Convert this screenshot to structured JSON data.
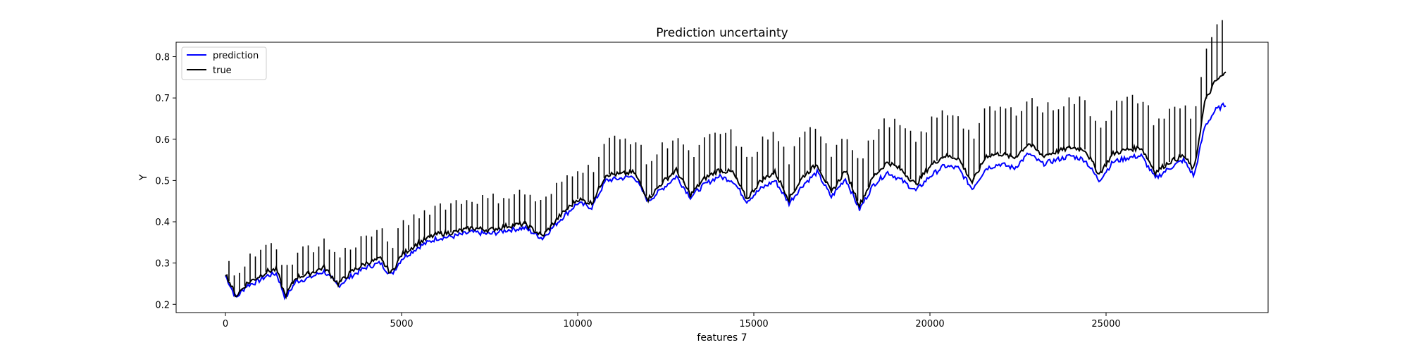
{
  "chart_data": {
    "type": "line",
    "title": "Prediction uncertainty",
    "xlabel": "features 7",
    "ylabel": "Y",
    "xlim": [
      -1400,
      29600
    ],
    "ylim": [
      0.18,
      0.835
    ],
    "x_ticks": [
      0,
      5000,
      10000,
      15000,
      20000,
      25000
    ],
    "y_ticks": [
      0.2,
      0.3,
      0.4,
      0.5,
      0.6,
      0.7,
      0.8
    ],
    "x_tick_labels": [
      "0",
      "5000",
      "10000",
      "15000",
      "20000",
      "25000"
    ],
    "y_tick_labels": [
      "0.2",
      "0.3",
      "0.4",
      "0.5",
      "0.6",
      "0.7",
      "0.8"
    ],
    "grid": false,
    "legend_position": "upper-left",
    "colors": {
      "prediction": "#0000ff",
      "true": "#000000"
    },
    "series": [
      {
        "name": "prediction",
        "x": [
          0,
          300,
          600,
          900,
          1200,
          1450,
          1700,
          2000,
          2400,
          2800,
          3200,
          3600,
          4000,
          4400,
          4700,
          5000,
          5500,
          6000,
          6500,
          7000,
          7500,
          8000,
          8500,
          9000,
          9500,
          10000,
          10400,
          10800,
          11200,
          11600,
          12000,
          12400,
          12800,
          13200,
          13600,
          14000,
          14400,
          14800,
          15200,
          15600,
          16000,
          16400,
          16800,
          17200,
          17600,
          18000,
          18400,
          18800,
          19200,
          19600,
          20000,
          20400,
          20800,
          21200,
          21600,
          22000,
          22400,
          22800,
          23200,
          23600,
          24000,
          24400,
          24800,
          25200,
          25600,
          26000,
          26400,
          26800,
          27200,
          27500,
          27800,
          28100,
          28400
        ],
        "y": [
          0.27,
          0.215,
          0.245,
          0.255,
          0.27,
          0.275,
          0.215,
          0.255,
          0.265,
          0.28,
          0.245,
          0.27,
          0.29,
          0.3,
          0.27,
          0.31,
          0.34,
          0.36,
          0.365,
          0.375,
          0.37,
          0.38,
          0.385,
          0.36,
          0.405,
          0.445,
          0.435,
          0.5,
          0.505,
          0.51,
          0.45,
          0.48,
          0.51,
          0.46,
          0.49,
          0.51,
          0.5,
          0.45,
          0.48,
          0.5,
          0.445,
          0.49,
          0.52,
          0.46,
          0.505,
          0.43,
          0.49,
          0.52,
          0.5,
          0.475,
          0.51,
          0.535,
          0.53,
          0.48,
          0.53,
          0.54,
          0.53,
          0.565,
          0.54,
          0.55,
          0.56,
          0.55,
          0.5,
          0.545,
          0.555,
          0.56,
          0.505,
          0.53,
          0.55,
          0.51,
          0.63,
          0.67,
          0.685
        ]
      },
      {
        "name": "true",
        "x": [
          0,
          300,
          600,
          900,
          1200,
          1450,
          1700,
          2000,
          2400,
          2800,
          3200,
          3600,
          4000,
          4400,
          4700,
          5000,
          5500,
          6000,
          6500,
          7000,
          7500,
          8000,
          8500,
          9000,
          9500,
          10000,
          10400,
          10800,
          11200,
          11600,
          12000,
          12400,
          12800,
          13200,
          13600,
          14000,
          14400,
          14800,
          15200,
          15600,
          16000,
          16400,
          16800,
          17200,
          17600,
          18000,
          18400,
          18800,
          19200,
          19600,
          20000,
          20400,
          20800,
          21200,
          21600,
          22000,
          22400,
          22800,
          23200,
          23600,
          24000,
          24400,
          24800,
          25200,
          25600,
          26000,
          26400,
          26800,
          27200,
          27500,
          27800,
          28100,
          28400
        ],
        "y": [
          0.275,
          0.22,
          0.25,
          0.265,
          0.28,
          0.285,
          0.22,
          0.265,
          0.275,
          0.29,
          0.25,
          0.28,
          0.3,
          0.31,
          0.275,
          0.32,
          0.35,
          0.37,
          0.375,
          0.385,
          0.38,
          0.39,
          0.395,
          0.365,
          0.415,
          0.455,
          0.445,
          0.515,
          0.515,
          0.52,
          0.455,
          0.495,
          0.525,
          0.465,
          0.505,
          0.525,
          0.52,
          0.455,
          0.5,
          0.52,
          0.455,
          0.51,
          0.54,
          0.47,
          0.525,
          0.44,
          0.51,
          0.545,
          0.525,
          0.49,
          0.535,
          0.56,
          0.555,
          0.495,
          0.56,
          0.565,
          0.555,
          0.59,
          0.56,
          0.57,
          0.58,
          0.575,
          0.515,
          0.565,
          0.575,
          0.58,
          0.52,
          0.545,
          0.56,
          0.525,
          0.69,
          0.74,
          0.76
        ]
      }
    ]
  }
}
